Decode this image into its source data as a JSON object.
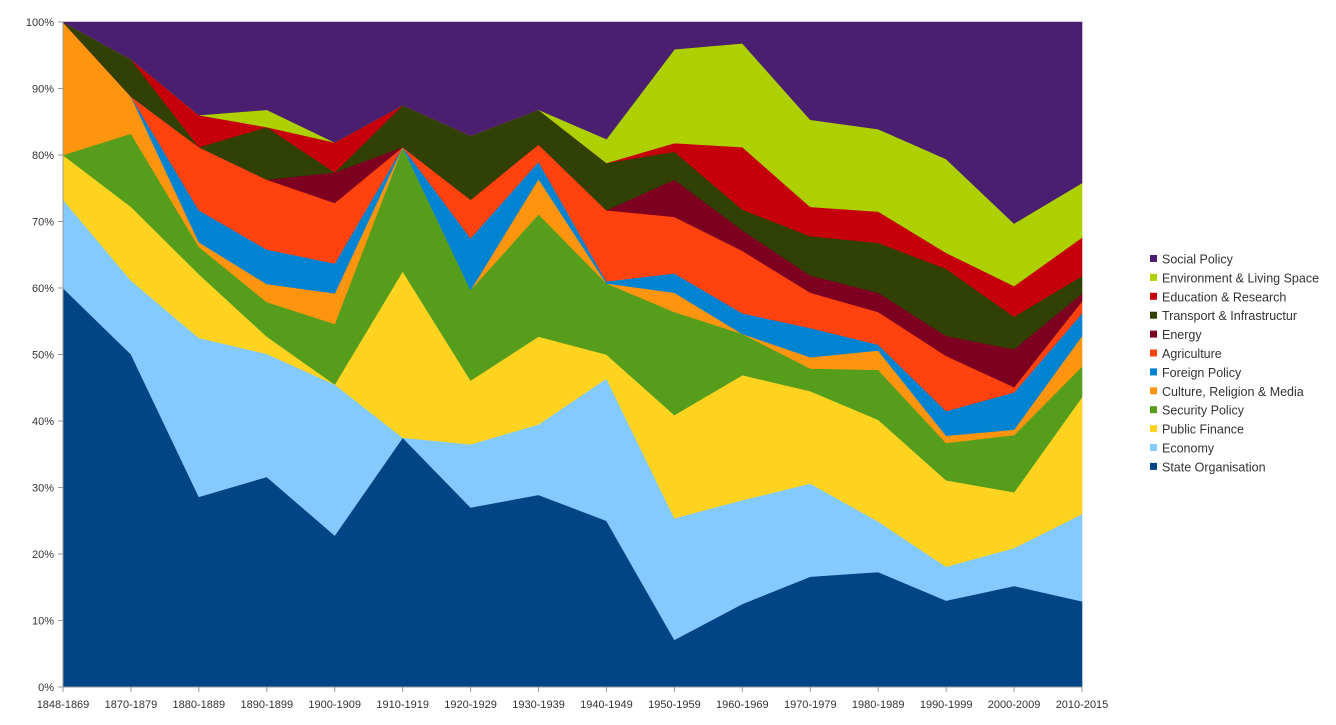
{
  "chart_data": {
    "type": "area",
    "stacked": true,
    "percent": true,
    "title": "",
    "xlabel": "",
    "ylabel": "",
    "ylim": [
      0,
      100
    ],
    "y_ticks": [
      "0%",
      "10%",
      "20%",
      "30%",
      "40%",
      "50%",
      "60%",
      "70%",
      "80%",
      "90%",
      "100%"
    ],
    "grid": false,
    "legend_position": "right",
    "categories": [
      "1848-1869",
      "1870-1879",
      "1880-1889",
      "1890-1899",
      "1900-1909",
      "1910-1919",
      "1920-1929",
      "1930-1939",
      "1940-1949",
      "1950-1959",
      "1960-1969",
      "1970-1979",
      "1980-1989",
      "1990-1999",
      "2000-2009",
      "2010-2015"
    ],
    "series": [
      {
        "name": "State Organisation",
        "color": "#004586",
        "values": [
          60,
          50.1,
          28.6,
          31.6,
          22.8,
          37.5,
          27,
          28.9,
          25,
          7.1,
          12.5,
          16.6,
          17.3,
          13,
          15.2,
          12.9
        ]
      },
      {
        "name": "Economy",
        "color": "#83caff",
        "values": [
          13.3,
          11.1,
          23.9,
          18.5,
          22.7,
          0,
          9.5,
          10.6,
          21.4,
          18.3,
          15.6,
          14,
          7.6,
          5.1,
          5.7,
          13.1
        ]
      },
      {
        "name": "Public Finance",
        "color": "#ffd320",
        "values": [
          6.7,
          11.1,
          9.6,
          2.6,
          0,
          25,
          9.6,
          13.2,
          3.6,
          15.5,
          18.8,
          13.9,
          15.3,
          13,
          8.4,
          17.6
        ]
      },
      {
        "name": "Security Policy",
        "color": "#579d1c",
        "values": [
          0,
          11,
          4.1,
          5.2,
          9.1,
          18.7,
          13.6,
          18.4,
          10.7,
          15.5,
          6.2,
          3.4,
          7.5,
          5.6,
          8.6,
          4.6
        ]
      },
      {
        "name": "Culture, Religion & Media",
        "color": "#ff950e",
        "values": [
          20,
          5.6,
          0.7,
          2.7,
          4.6,
          0,
          0,
          5.3,
          0,
          2.9,
          0,
          1.7,
          2.9,
          1.1,
          0.8,
          4.6
        ]
      },
      {
        "name": "Foreign Policy",
        "color": "#0084d1",
        "values": [
          0,
          0,
          4.8,
          5.2,
          4.5,
          0,
          7.8,
          2.6,
          0.3,
          2.9,
          3.1,
          4.4,
          0.9,
          3.7,
          5.6,
          3.4
        ]
      },
      {
        "name": "Agriculture",
        "color": "#ff420e",
        "values": [
          0,
          0,
          9.5,
          10.5,
          9.1,
          0,
          5.8,
          2.6,
          10.7,
          8.5,
          9.4,
          5.3,
          4.9,
          8.3,
          0.8,
          1.8
        ]
      },
      {
        "name": "Energy",
        "color": "#7e0021",
        "values": [
          0,
          0,
          0,
          0,
          4.6,
          0,
          0,
          0,
          0,
          5.6,
          3.1,
          2.6,
          2.9,
          3,
          5.7,
          1.2
        ]
      },
      {
        "name": "Transport & Infrastructur",
        "color": "#314004",
        "values": [
          0,
          5.6,
          0,
          7.9,
          0,
          6.3,
          9.6,
          5.2,
          7.1,
          4.2,
          3.1,
          5.9,
          7.5,
          10.1,
          4.9,
          2.6
        ]
      },
      {
        "name": "Education & Research",
        "color": "#c5000b",
        "values": [
          0,
          0,
          4.8,
          0,
          4.5,
          0,
          0,
          0,
          0,
          1.3,
          9.4,
          4.4,
          4.7,
          2.4,
          4.6,
          5.8
        ]
      },
      {
        "name": "Environment & Living Space",
        "color": "#aecf00",
        "values": [
          0,
          0,
          0,
          2.6,
          0,
          0,
          0,
          0,
          3.6,
          14.1,
          15.6,
          13.1,
          12.4,
          14.1,
          9.4,
          8.2
        ]
      },
      {
        "name": "Social Policy",
        "color": "#4b1f6f",
        "values": [
          0,
          5.6,
          14,
          13.2,
          18.1,
          12.5,
          17.1,
          13.2,
          17.6,
          4.1,
          3.2,
          14.7,
          16.1,
          20.6,
          30.3,
          24.2
        ]
      }
    ]
  }
}
